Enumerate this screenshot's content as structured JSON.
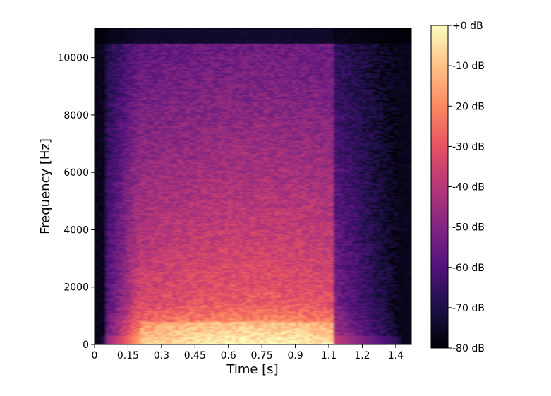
{
  "chart_data": {
    "type": "heatmap",
    "subtype": "spectrogram",
    "xlabel": "Time [s]",
    "ylabel": "Frequency [Hz]",
    "xlim": [
      0,
      1.42
    ],
    "ylim": [
      0,
      11025
    ],
    "x_ticks": [
      "0",
      "0.15",
      "0.3",
      "0.45",
      "0.6",
      "0.75",
      "0.9",
      "1.1",
      "1.2",
      "1.4"
    ],
    "x_tick_values": [
      0,
      0.15,
      0.3,
      0.45,
      0.6,
      0.75,
      0.9,
      1.05,
      1.2,
      1.35
    ],
    "y_ticks": [
      "0",
      "2000",
      "4000",
      "6000",
      "8000",
      "10000"
    ],
    "y_tick_values": [
      0,
      2000,
      4000,
      6000,
      8000,
      10000
    ],
    "colormap": "magma",
    "colorbar": {
      "range_db": [
        -80,
        0
      ],
      "ticks": [
        "+0 dB",
        "-10 dB",
        "-20 dB",
        "-30 dB",
        "-40 dB",
        "-50 dB",
        "-60 dB",
        "-70 dB",
        "-80 dB"
      ],
      "tick_values": [
        0,
        -10,
        -20,
        -30,
        -40,
        -50,
        -60,
        -70,
        -80
      ]
    },
    "activity": {
      "sound_start_s": 0.04,
      "sound_end_s": 1.07,
      "onset_full_s": 0.2,
      "decay_end_s": 1.35,
      "strongest_band_hz": [
        0,
        1500
      ],
      "peak_db": 0,
      "floor_db": -80
    }
  }
}
